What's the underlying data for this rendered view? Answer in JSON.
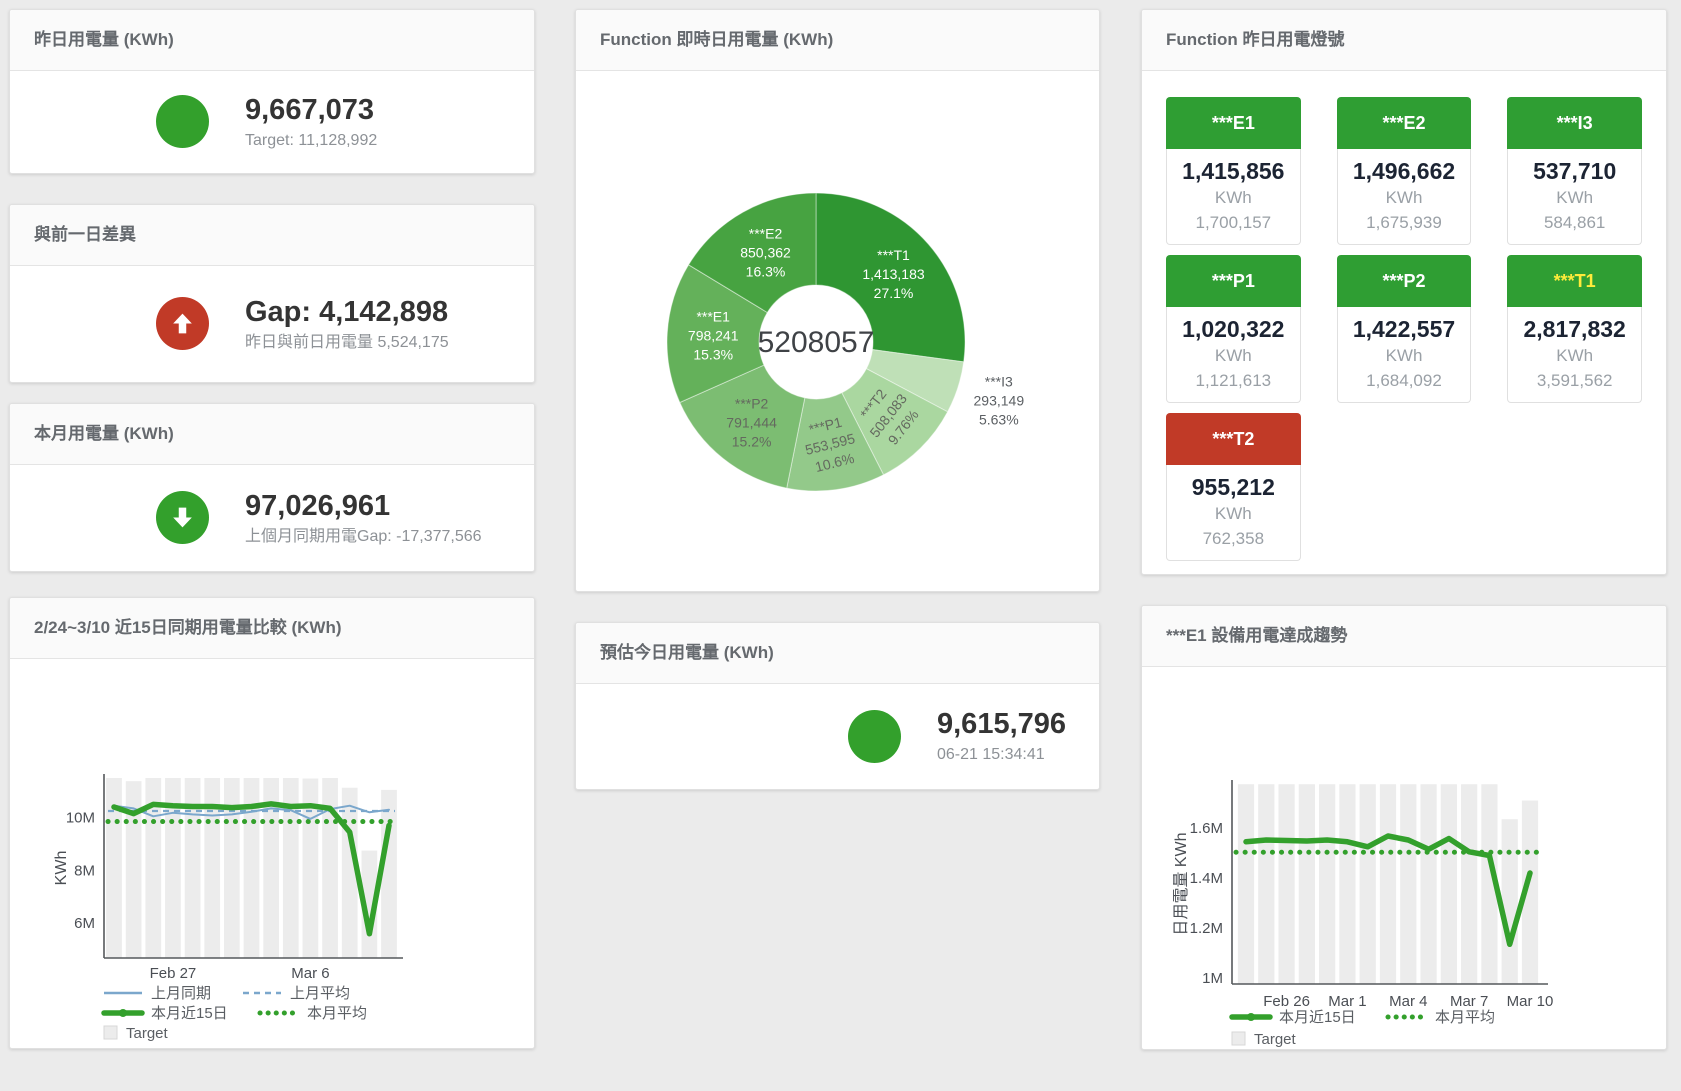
{
  "colors": {
    "green": "#2f9e33",
    "red": "#c13a27",
    "accent_green": "#33a02c",
    "blue": "#7ba7cc",
    "target_gray": "#ececec",
    "yellow_label": "#ffeb3b",
    "white_label": "#ffffff"
  },
  "panels": {
    "yesterday": {
      "title": "昨日用電量 (KWh)",
      "value": "9,667,073",
      "subtitle": "Target: 11,128,992"
    },
    "gap_prev_day": {
      "title": "與前一日差異",
      "value": "Gap: 4,142,898",
      "subtitle": "昨日與前日用電量 5,524,175"
    },
    "month": {
      "title": "本月用電量 (KWh)",
      "value": "97,026,961",
      "subtitle": "上個月同期用電Gap: -17,377,566"
    },
    "compare15": {
      "title": "2/24~3/10 近15日同期用電量比較 (KWh)"
    },
    "realtime_donut": {
      "title": "Function 即時日用電量 (KWh)"
    },
    "estimate_today": {
      "title": "預估今日用電量 (KWh)",
      "value": "9,615,796",
      "subtitle": "06-21 15:34:41"
    },
    "lights": {
      "title": "Function 昨日用電燈號",
      "tiles": [
        {
          "name": "***E1",
          "value": "1,415,856",
          "unit": "KWh",
          "target": "1,700,157",
          "status": "green",
          "label_color": "#ffffff"
        },
        {
          "name": "***E2",
          "value": "1,496,662",
          "unit": "KWh",
          "target": "1,675,939",
          "status": "green",
          "label_color": "#ffffff"
        },
        {
          "name": "***I3",
          "value": "537,710",
          "unit": "KWh",
          "target": "584,861",
          "status": "green",
          "label_color": "#ffffff"
        },
        {
          "name": "***P1",
          "value": "1,020,322",
          "unit": "KWh",
          "target": "1,121,613",
          "status": "green",
          "label_color": "#ffffff"
        },
        {
          "name": "***P2",
          "value": "1,422,557",
          "unit": "KWh",
          "target": "1,684,092",
          "status": "green",
          "label_color": "#ffffff"
        },
        {
          "name": "***T1",
          "value": "2,817,832",
          "unit": "KWh",
          "target": "3,591,562",
          "status": "green",
          "label_color": "#ffeb3b"
        },
        {
          "name": "***T2",
          "value": "955,212",
          "unit": "KWh",
          "target": "762,358",
          "status": "red",
          "label_color": "#ffffff"
        }
      ]
    },
    "e1_trend": {
      "title": "***E1 設備用電達成趨勢"
    }
  },
  "chart_data": [
    {
      "id": "function_realtime_donut",
      "type": "pie",
      "title": "Function 即時日用電量 (KWh)",
      "center_total": "5208057",
      "unit": "KWh",
      "slices": [
        {
          "name": "***T1",
          "value": 1413183,
          "display": "1,413,183",
          "pct": "27.1%",
          "color": "#2f9632",
          "label_color": "#ffffff",
          "label_pos": "inside",
          "rotate": 0
        },
        {
          "name": "***I3",
          "value": 293149,
          "display": "293,149",
          "pct": "5.63%",
          "color": "#bfe0b7",
          "label_color": "#5b5f63",
          "label_pos": "outside",
          "rotate": 0
        },
        {
          "name": "***T2",
          "value": 508083,
          "display": "508,083",
          "pct": "9.76%",
          "color": "#aad7a0",
          "label_color": "#64695f",
          "label_pos": "inside",
          "rotate": -52
        },
        {
          "name": "***P1",
          "value": 553595,
          "display": "553,595",
          "pct": "10.6%",
          "color": "#93c98a",
          "label_color": "#64695f",
          "label_pos": "inside",
          "rotate": -14
        },
        {
          "name": "***P2",
          "value": 791444,
          "display": "791,444",
          "pct": "15.2%",
          "color": "#7cbd72",
          "label_color": "#64695f",
          "label_pos": "inside",
          "rotate": 0
        },
        {
          "name": "***E1",
          "value": 798241,
          "display": "798,241",
          "pct": "15.3%",
          "color": "#64b15a",
          "label_color": "#ffffff",
          "label_pos": "inside",
          "rotate": 0
        },
        {
          "name": "***E2",
          "value": 850362,
          "display": "850,362",
          "pct": "16.3%",
          "color": "#47a341",
          "label_color": "#ffffff",
          "label_pos": "inside",
          "rotate": 0
        }
      ]
    },
    {
      "id": "compare15",
      "type": "line",
      "title": "2/24~3/10 近15日同期用電量比較 (KWh)",
      "ylabel": "KWh",
      "ylim": [
        4680000,
        11500000
      ],
      "yticks": [
        {
          "v": 6000000,
          "label": "6M"
        },
        {
          "v": 8000000,
          "label": "8M"
        },
        {
          "v": 10000000,
          "label": "10M"
        }
      ],
      "x_count": 15,
      "x_labels": [
        {
          "i": 3,
          "label": "Feb 27"
        },
        {
          "i": 10,
          "label": "Mar 6"
        }
      ],
      "bars": {
        "name": "Target",
        "color": "#ececec",
        "values": [
          11500000,
          11380000,
          11520000,
          11500000,
          11500000,
          11520000,
          11500000,
          11500000,
          11500000,
          11500000,
          11480000,
          11500000,
          11130000,
          8750000,
          11050000
        ]
      },
      "series": [
        {
          "name": "上月同期",
          "color": "#7ba7cc",
          "width": 2,
          "values": [
            10450000,
            10350000,
            10050000,
            10180000,
            10120000,
            10080000,
            10120000,
            10220000,
            10350000,
            10280000,
            9950000,
            10320000,
            10450000,
            10200000,
            10300000
          ]
        },
        {
          "name": "本月近15日",
          "color": "#33a02c",
          "width": 5.5,
          "values": [
            10400000,
            10150000,
            10500000,
            10450000,
            10420000,
            10420000,
            10380000,
            10420000,
            10520000,
            10420000,
            10450000,
            10350000,
            9450000,
            5600000,
            9700000
          ]
        }
      ],
      "avg_lines": [
        {
          "name": "上月平均",
          "color": "#7ba7cc",
          "value": 10250000,
          "style": "dash"
        },
        {
          "name": "本月平均",
          "color": "#33a02c",
          "value": 9850000,
          "style": "dots"
        }
      ],
      "legend_rows": [
        [
          {
            "sw": "line",
            "color": "#7ba7cc",
            "label": "上月同期"
          },
          {
            "sw": "dash",
            "color": "#7ba7cc",
            "label": "上月平均"
          }
        ],
        [
          {
            "sw": "thickline",
            "color": "#33a02c",
            "label": "本月近15日"
          },
          {
            "sw": "dots",
            "color": "#33a02c",
            "label": "本月平均"
          }
        ],
        [
          {
            "sw": "rect",
            "color": "#ececec",
            "label": "Target"
          }
        ]
      ]
    },
    {
      "id": "e1trend",
      "type": "line",
      "title": "***E1 設備用電達成趨勢",
      "ylabel": "日用電量 KWh",
      "ylim": [
        976000,
        1776000
      ],
      "yticks": [
        {
          "v": 1000000,
          "label": "1M"
        },
        {
          "v": 1200000,
          "label": "1.2M"
        },
        {
          "v": 1400000,
          "label": "1.4M"
        },
        {
          "v": 1600000,
          "label": "1.6M"
        }
      ],
      "x_count": 15,
      "x_labels": [
        {
          "i": 2,
          "label": "Feb 26"
        },
        {
          "i": 5,
          "label": "Mar 1"
        },
        {
          "i": 8,
          "label": "Mar 4"
        },
        {
          "i": 11,
          "label": "Mar 7"
        },
        {
          "i": 14,
          "label": "Mar 10"
        }
      ],
      "bars": {
        "name": "Target",
        "color": "#ececec",
        "values": [
          1775000,
          1775000,
          1775000,
          1775000,
          1775000,
          1775000,
          1775000,
          1775000,
          1775000,
          1775000,
          1775000,
          1775000,
          1775000,
          1635000,
          1710000
        ]
      },
      "series": [
        {
          "name": "本月近15日",
          "color": "#33a02c",
          "width": 5.5,
          "values": [
            1545000,
            1552000,
            1550000,
            1548000,
            1552000,
            1545000,
            1525000,
            1568000,
            1552000,
            1515000,
            1558000,
            1505000,
            1490000,
            1135000,
            1420000
          ]
        }
      ],
      "avg_lines": [
        {
          "name": "本月平均",
          "color": "#33a02c",
          "value": 1503000,
          "style": "dots"
        }
      ],
      "legend_rows": [
        [
          {
            "sw": "thickline",
            "color": "#33a02c",
            "label": "本月近15日"
          },
          {
            "sw": "dots",
            "color": "#33a02c",
            "label": "本月平均"
          }
        ],
        [
          {
            "sw": "rect",
            "color": "#ececec",
            "label": "Target"
          }
        ]
      ]
    }
  ]
}
